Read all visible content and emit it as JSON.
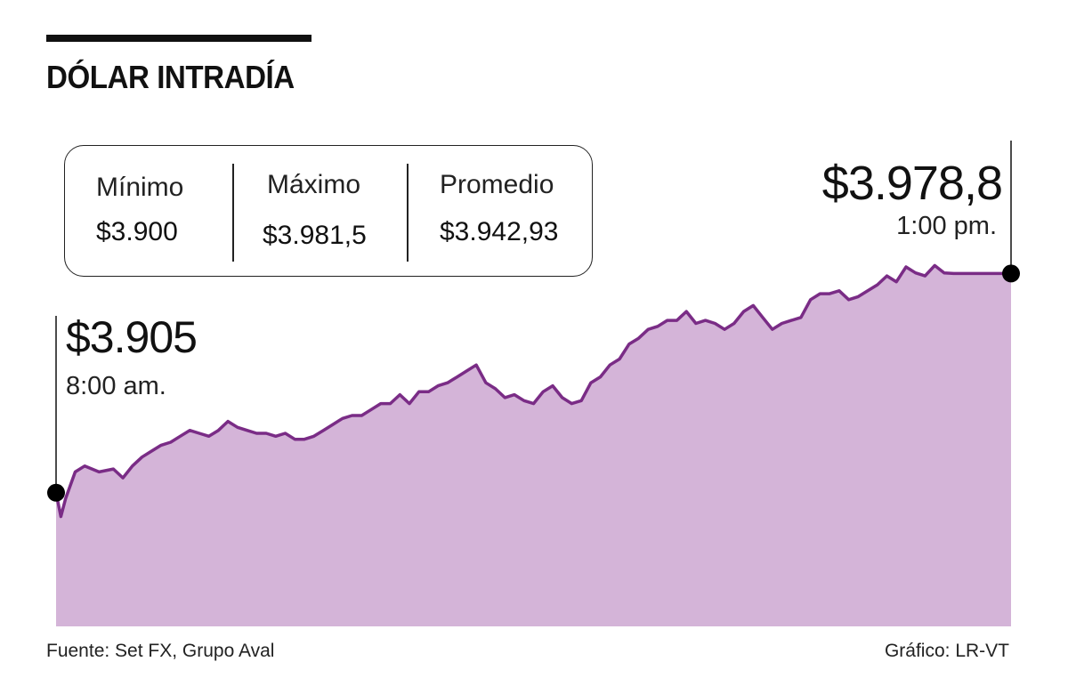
{
  "header": {
    "title": "DÓLAR INTRADÍA"
  },
  "stats": [
    {
      "label": "Mínimo",
      "value": "$3.900"
    },
    {
      "label": "Máximo",
      "value": "$3.981,5"
    },
    {
      "label": "Promedio",
      "value": "$3.942,93"
    }
  ],
  "annotations": {
    "start": {
      "price": "$3.905",
      "time": "8:00 am."
    },
    "end": {
      "price": "$3.978,8",
      "time": "1:00 pm."
    }
  },
  "footer": {
    "source": "Fuente: Set FX, Grupo Aval",
    "credit": "Gráfico: LR-VT"
  },
  "colors": {
    "line": "#7a2c86",
    "fill": "#d4b4d8",
    "marker": "#000000"
  },
  "chart_data": {
    "type": "area",
    "title": "DÓLAR INTRADÍA",
    "xlabel": "",
    "ylabel": "",
    "x_range": [
      "8:00 am.",
      "1:00 pm."
    ],
    "ylim": [
      3860,
      3990
    ],
    "grid": false,
    "legend": "none",
    "series": [
      {
        "x": [
          0,
          0.005,
          0.01,
          0.02,
          0.03,
          0.045,
          0.06,
          0.07,
          0.08,
          0.09,
          0.1,
          0.11,
          0.12,
          0.13,
          0.14,
          0.15,
          0.16,
          0.17,
          0.18,
          0.19,
          0.2,
          0.21,
          0.22,
          0.23,
          0.24,
          0.25,
          0.26,
          0.27,
          0.28,
          0.29,
          0.3,
          0.31,
          0.32,
          0.33,
          0.34,
          0.35,
          0.36,
          0.37,
          0.38,
          0.39,
          0.4,
          0.41,
          0.42,
          0.43,
          0.44,
          0.45,
          0.46,
          0.47,
          0.48,
          0.49,
          0.5,
          0.51,
          0.52,
          0.53,
          0.54,
          0.55,
          0.56,
          0.57,
          0.58,
          0.59,
          0.6,
          0.61,
          0.62,
          0.63,
          0.64,
          0.65,
          0.66,
          0.67,
          0.68,
          0.69,
          0.7,
          0.71,
          0.72,
          0.73,
          0.74,
          0.75,
          0.76,
          0.77,
          0.78,
          0.79,
          0.8,
          0.81,
          0.82,
          0.83,
          0.84,
          0.85,
          0.86,
          0.87,
          0.88,
          0.89,
          0.9,
          0.91,
          0.92,
          0.93,
          0.94,
          0.95,
          0.96,
          0.97,
          0.98,
          0.99,
          1.0
        ],
        "values": [
          3905,
          3897,
          3903,
          3912,
          3914,
          3912,
          3913,
          3910,
          3914,
          3917,
          3919,
          3921,
          3922,
          3924,
          3926,
          3925,
          3924,
          3926,
          3929,
          3927,
          3926,
          3925,
          3925,
          3924,
          3925,
          3923,
          3923,
          3924,
          3926,
          3928,
          3930,
          3931,
          3931,
          3933,
          3935,
          3935,
          3938,
          3935,
          3939,
          3939,
          3941,
          3942,
          3944,
          3946,
          3948,
          3942,
          3940,
          3937,
          3938,
          3936,
          3935,
          3939,
          3941,
          3937,
          3935,
          3936,
          3942,
          3944,
          3948,
          3950,
          3955,
          3957,
          3960,
          3961,
          3963,
          3963,
          3966,
          3962,
          3963,
          3962,
          3960,
          3962,
          3966,
          3968,
          3964,
          3960,
          3962,
          3963,
          3964,
          3970,
          3972,
          3972,
          3973,
          3970,
          3971,
          3973,
          3975,
          3978,
          3976,
          3981,
          3979,
          3978,
          3981.5,
          3979,
          3978.8,
          3978.8,
          3978.8,
          3978.8,
          3978.8,
          3978.8,
          3978.8
        ]
      }
    ]
  }
}
